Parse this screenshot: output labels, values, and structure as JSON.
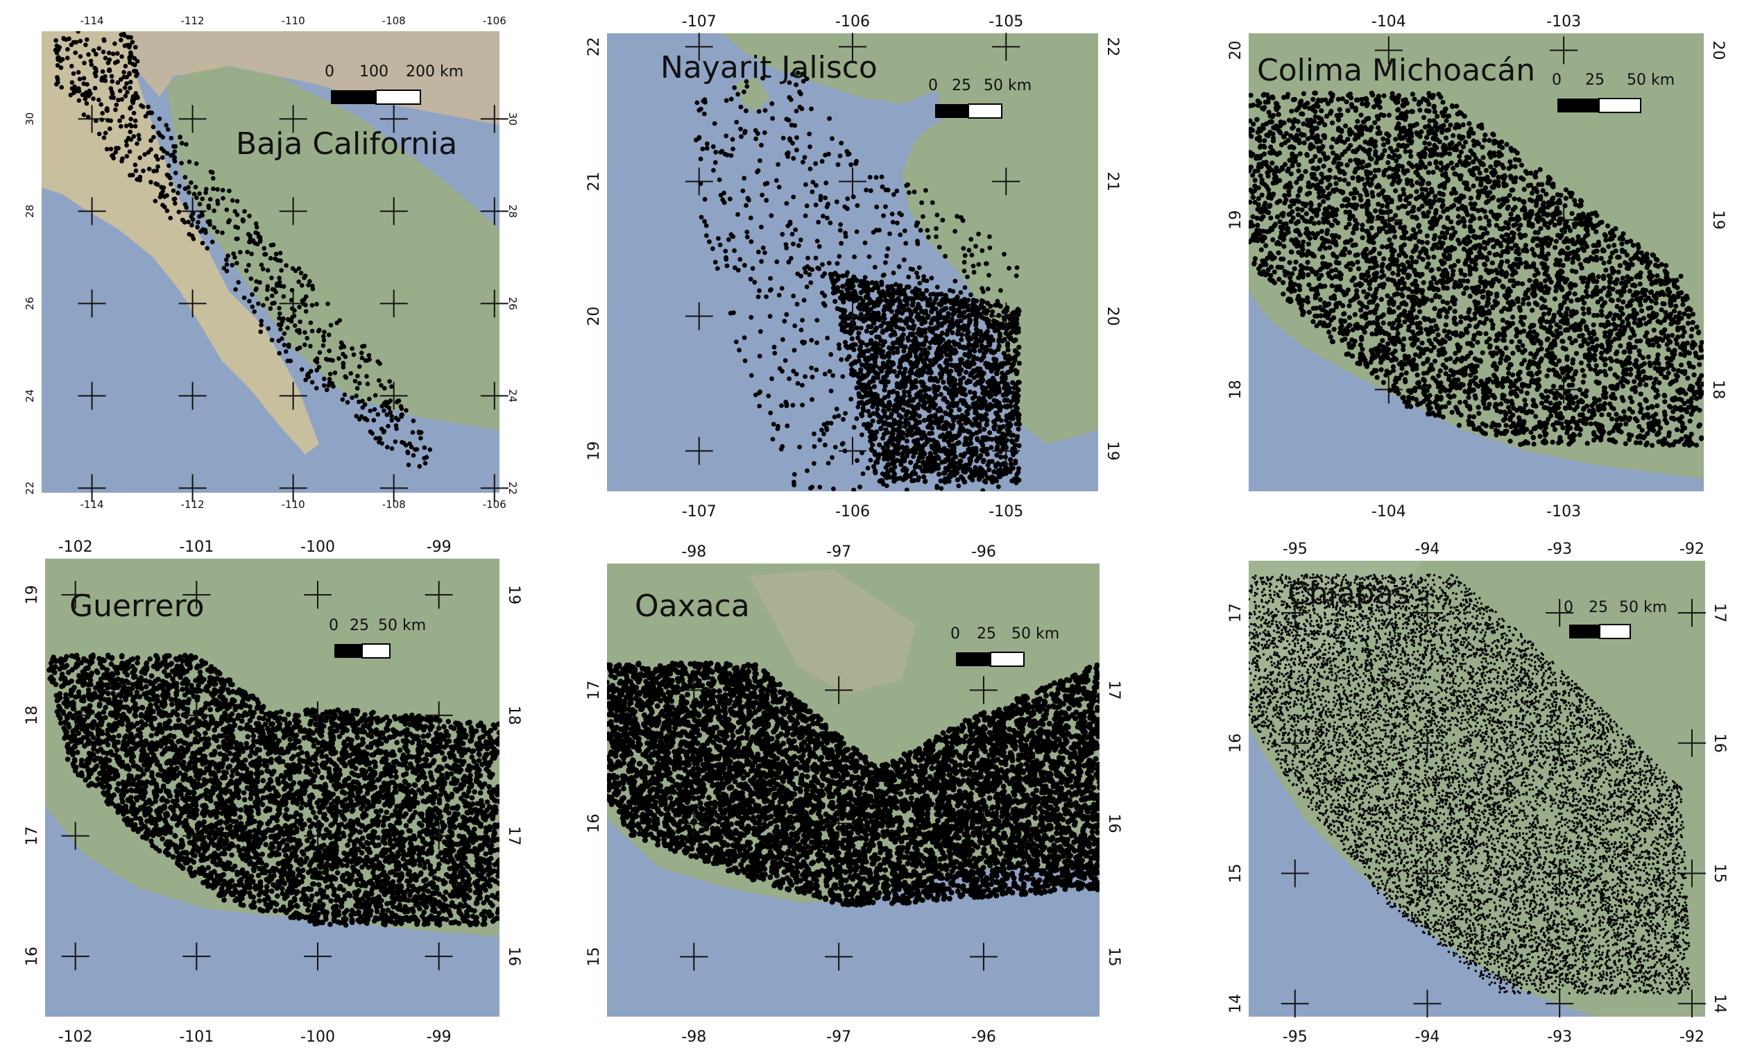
{
  "panels": [
    {
      "id": "baja",
      "title": "Baja California",
      "lon": [
        -115,
        -105.9
      ],
      "lat": [
        21.9,
        31.9
      ],
      "top_lon_ticks": [
        -114,
        -112,
        -110,
        -108,
        -106
      ],
      "bottom_lon_ticks": [
        -114,
        -112,
        -110,
        -108,
        -106
      ],
      "left_lat_ticks": [
        22,
        24,
        26,
        28,
        30
      ],
      "right_lat_ticks": [
        22,
        24,
        26,
        28,
        30
      ],
      "scalebar": [
        "0",
        "100",
        "200 km"
      ],
      "density": "sparse"
    },
    {
      "id": "nayarit",
      "title": "Nayarit Jalisco",
      "lon": [
        -107.6,
        -104.4
      ],
      "lat": [
        18.7,
        22.1
      ],
      "top_lon_ticks": [
        -107,
        -106,
        -105
      ],
      "bottom_lon_ticks": [
        -107,
        -106,
        -105
      ],
      "left_lat_ticks": [
        19,
        20,
        21,
        22
      ],
      "right_lat_ticks": [
        19,
        20,
        21,
        22
      ],
      "scalebar": [
        "0",
        "25",
        "50 km"
      ],
      "density": "sparse"
    },
    {
      "id": "colima",
      "title": "Colima Michoacán",
      "lon": [
        -104.8,
        -102.2
      ],
      "lat": [
        17.4,
        20.1
      ],
      "top_lon_ticks": [
        -104,
        -103
      ],
      "bottom_lon_ticks": [
        -104,
        -103
      ],
      "left_lat_ticks": [
        18,
        19,
        20
      ],
      "right_lat_ticks": [
        18,
        19,
        20
      ],
      "scalebar": [
        "0",
        "25",
        "50 km"
      ],
      "density": "dense"
    },
    {
      "id": "guerrero",
      "title": "Guerrero",
      "lon": [
        -102.25,
        -98.5
      ],
      "lat": [
        15.5,
        19.3
      ],
      "top_lon_ticks": [
        -102,
        -101,
        -100,
        -99
      ],
      "bottom_lon_ticks": [
        -102,
        -101,
        -100,
        -99
      ],
      "left_lat_ticks": [
        16,
        17,
        18,
        19
      ],
      "right_lat_ticks": [
        16,
        17,
        18,
        19
      ],
      "scalebar": [
        "0",
        "25",
        "50 km"
      ],
      "density": "dense"
    },
    {
      "id": "oaxaca",
      "title": "Oaxaca",
      "lon": [
        -98.6,
        -95.2
      ],
      "lat": [
        14.55,
        17.95
      ],
      "top_lon_ticks": [
        -98,
        -97,
        -96
      ],
      "bottom_lon_ticks": [
        -98,
        -97,
        -96
      ],
      "left_lat_ticks": [
        15,
        16,
        17
      ],
      "right_lat_ticks": [
        15,
        16,
        17
      ],
      "scalebar": [
        "0",
        "25",
        "50 km"
      ],
      "density": "dense"
    },
    {
      "id": "chiapas",
      "title": "Chiapas",
      "lon": [
        -95.35,
        -91.9
      ],
      "lat": [
        13.9,
        17.4
      ],
      "top_lon_ticks": [
        -95,
        -94,
        -93,
        -92
      ],
      "bottom_lon_ticks": [
        -95,
        -94,
        -93,
        -92
      ],
      "left_lat_ticks": [
        14,
        15,
        16,
        17
      ],
      "right_lat_ticks": [
        14,
        15,
        16,
        17
      ],
      "scalebar": [
        "0",
        "25",
        "50 km"
      ],
      "density": "fine"
    }
  ],
  "colors": {
    "sea": "#8fa3c4",
    "land": "#9aad8a",
    "land_dry": "#c9b99a",
    "points": "#000000",
    "crosshair": "#111111"
  }
}
